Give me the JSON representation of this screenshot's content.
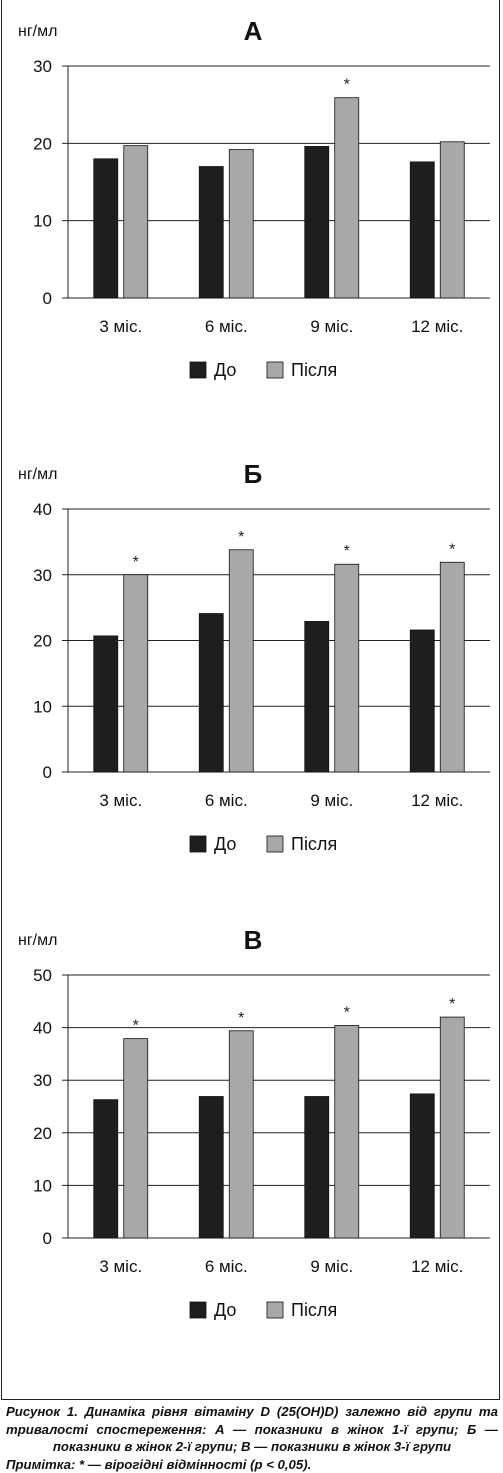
{
  "chart_data": [
    {
      "type": "bar",
      "title": "А",
      "ylabel": "нг/мл",
      "categories": [
        "3 міс.",
        "6 міс.",
        "9 міс.",
        "12 міс."
      ],
      "ylim": [
        0,
        30
      ],
      "yticks": [
        0,
        10,
        20,
        30
      ],
      "grid": true,
      "legend": "bottom",
      "series": [
        {
          "name": "До",
          "color": "#1e1e1e",
          "values": [
            18.0,
            17.0,
            19.6,
            17.6
          ]
        },
        {
          "name": "Після",
          "color": "#a8a8a8",
          "values": [
            19.7,
            19.2,
            25.9,
            20.2
          ]
        }
      ],
      "significance_marks": [
        false,
        false,
        true,
        false
      ],
      "significance_symbol": "*"
    },
    {
      "type": "bar",
      "title": "Б",
      "ylabel": "нг/мл",
      "categories": [
        "3 міс.",
        "6 міс.",
        "9 міс.",
        "12 міс."
      ],
      "ylim": [
        0,
        40
      ],
      "yticks": [
        0,
        10,
        20,
        30,
        40
      ],
      "grid": true,
      "legend": "bottom",
      "series": [
        {
          "name": "До",
          "color": "#1e1e1e",
          "values": [
            20.7,
            24.1,
            22.9,
            21.6
          ]
        },
        {
          "name": "Після",
          "color": "#a8a8a8",
          "values": [
            30.0,
            33.8,
            31.6,
            31.9
          ]
        }
      ],
      "significance_marks": [
        true,
        true,
        true,
        true
      ],
      "significance_symbol": "*"
    },
    {
      "type": "bar",
      "title": "В",
      "ylabel": "нг/мл",
      "categories": [
        "3 міс.",
        "6 міс.",
        "9 міс.",
        "12 міс."
      ],
      "ylim": [
        0,
        50
      ],
      "yticks": [
        0,
        10,
        20,
        30,
        40,
        50
      ],
      "grid": true,
      "legend": "bottom",
      "series": [
        {
          "name": "До",
          "color": "#1e1e1e",
          "values": [
            26.3,
            26.9,
            26.9,
            27.4
          ]
        },
        {
          "name": "Після",
          "color": "#a8a8a8",
          "values": [
            37.9,
            39.4,
            40.4,
            42.0
          ]
        }
      ],
      "significance_marks": [
        true,
        true,
        true,
        true
      ],
      "significance_symbol": "*"
    }
  ],
  "caption": {
    "main": "Рисунок 1. Динаміка рівня вітаміну D (25(OH)D) залежно від групи та тривалості спостереження: А — показники в жінок 1-ї групи; Б — показники в жінок 2-ї групи; В — показники в жінок 3-ї групи",
    "note": "Примітка: * — вірогідні відмінності (p < 0,05)."
  }
}
